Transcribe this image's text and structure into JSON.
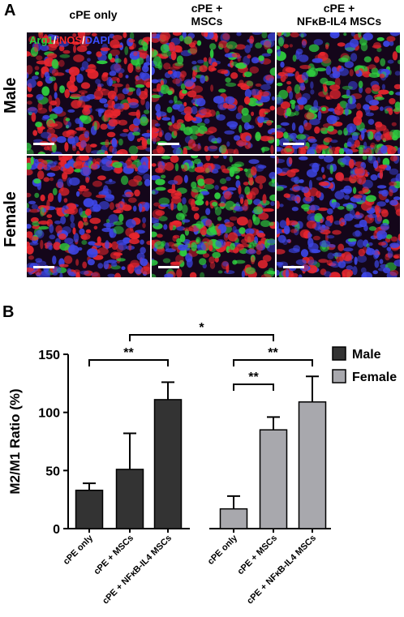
{
  "panel_a": {
    "letter": "A",
    "columns": [
      "cPE only",
      "cPE +\nMSCs",
      "cPE +\nNFκB-IL4 MSCs"
    ],
    "rows": [
      "Male",
      "Female"
    ],
    "stain_legend": [
      {
        "text": "Arg1",
        "color": "#27d23a"
      },
      {
        "text": "/",
        "color": "#ffffff"
      },
      {
        "text": "iNOS",
        "color": "#ff2a2a"
      },
      {
        "text": "/",
        "color": "#ffffff"
      },
      {
        "text": "DAPI",
        "color": "#3a4dff"
      }
    ]
  },
  "panel_b": {
    "letter": "B"
  },
  "chart_data": {
    "type": "bar",
    "ylabel": "M2/M1 Ratio (%)",
    "ylim": [
      0,
      150
    ],
    "yticks": [
      "0",
      "50",
      "100",
      "150"
    ],
    "categories": [
      "cPE only",
      "cPE + MSCs",
      "cPE + NFκB-IL4 MSCs"
    ],
    "series": [
      {
        "name": "Male",
        "color": "#333333",
        "values": [
          33,
          51,
          111
        ],
        "errors": [
          6,
          31,
          15
        ]
      },
      {
        "name": "Female",
        "color": "#a8a8ad",
        "values": [
          17,
          85,
          109
        ],
        "errors": [
          11,
          11,
          22
        ]
      }
    ],
    "significance": [
      {
        "label": "*",
        "from": [
          0,
          1
        ],
        "to": [
          1,
          1
        ]
      },
      {
        "label": "**",
        "from": [
          0,
          0
        ],
        "to": [
          0,
          2
        ]
      },
      {
        "label": "**",
        "from": [
          1,
          0
        ],
        "to": [
          1,
          1
        ]
      },
      {
        "label": "**",
        "from": [
          1,
          0
        ],
        "to": [
          1,
          2
        ]
      }
    ],
    "legend_position": "top-right"
  }
}
